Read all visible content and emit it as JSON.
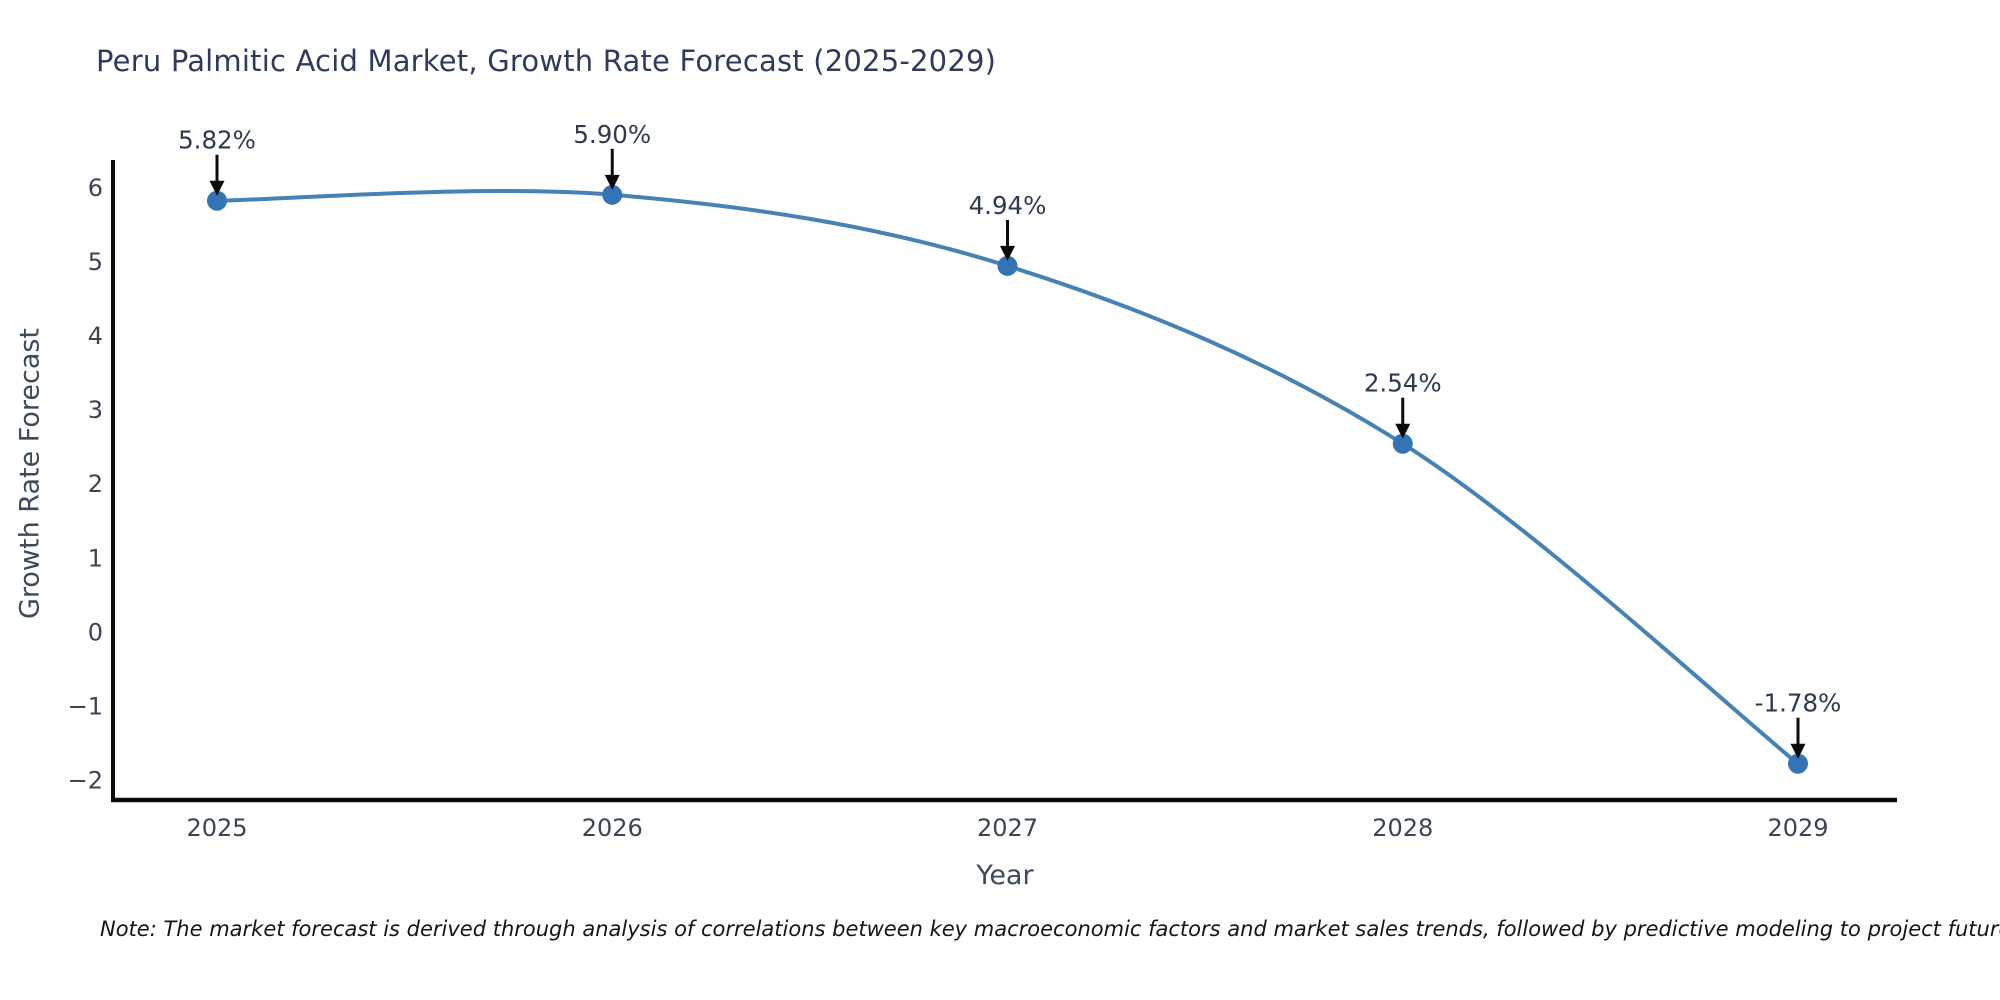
{
  "page": {
    "background": "#ffffff"
  },
  "chart_data": {
    "type": "line",
    "title": "Peru Palmitic Acid Market, Growth Rate Forecast (2025-2029)",
    "xlabel": "Year",
    "ylabel": "Growth Rate Forecast",
    "categories": [
      "2025",
      "2026",
      "2027",
      "2028",
      "2029"
    ],
    "values": [
      5.82,
      5.9,
      4.94,
      2.54,
      -1.78
    ],
    "point_labels": [
      "5.82%",
      "5.90%",
      "4.94%",
      "2.54%",
      "-1.78%"
    ],
    "yticks": [
      -2,
      -1,
      0,
      1,
      2,
      3,
      4,
      5,
      6
    ],
    "ylim": [
      -2.27,
      6.37
    ],
    "grid": false,
    "legend": "none",
    "line_color": "#4682b4",
    "marker_color": "#3375b4",
    "axis_color": "#0b0b0b",
    "arrow_color": "#0b0b0b",
    "tick_color": "#3b4552",
    "annotation_color": "#2e3a4e"
  },
  "note": {
    "text": "Note: The market forecast is derived through analysis of correlations between key macroeconomic factors and market sales trends, followed by predictive modeling to project future sales"
  }
}
